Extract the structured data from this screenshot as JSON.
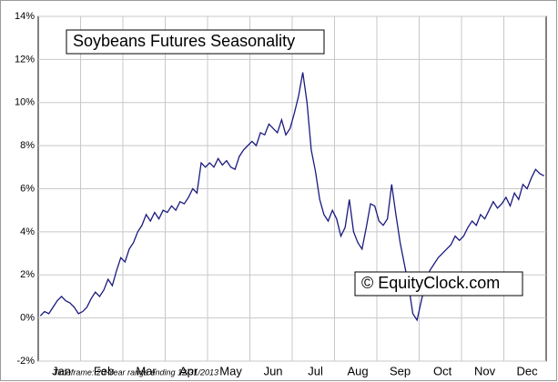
{
  "chart_data": {
    "type": "line",
    "title": "Soybeans Futures Seasonality",
    "watermark": "© EquityClock.com",
    "footnote": "Timeframe: 20-Year range ending 12/31/2013",
    "categories": [
      null,
      null,
      null,
      null,
      null,
      "Jan",
      null,
      null,
      null,
      null,
      null,
      null,
      null,
      null,
      null,
      "Feb",
      null,
      null,
      null,
      null,
      null,
      null,
      null,
      null,
      null,
      "Mar",
      null,
      null,
      null,
      null,
      null,
      null,
      null,
      null,
      null,
      "Apr",
      null,
      null,
      null,
      null,
      null,
      null,
      null,
      null,
      null,
      "May",
      null,
      null,
      null,
      null,
      null,
      null,
      null,
      null,
      null,
      "Jun",
      null,
      null,
      null,
      null,
      null,
      null,
      null,
      null,
      null,
      "Jul",
      null,
      null,
      null,
      null,
      null,
      null,
      null,
      null,
      null,
      "Aug",
      null,
      null,
      null,
      null,
      null,
      null,
      null,
      null,
      null,
      "Sep",
      null,
      null,
      null,
      null,
      null,
      null,
      null,
      null,
      null,
      "Oct",
      null,
      null,
      null,
      null,
      null,
      null,
      null,
      null,
      null,
      "Nov",
      null,
      null,
      null,
      null,
      null,
      null,
      null,
      null,
      null,
      "Dec",
      null,
      null,
      null,
      null
    ],
    "series": [
      {
        "color": "#1a1a80",
        "values": [
          0.1,
          0.3,
          0.2,
          0.5,
          0.8,
          1.0,
          0.8,
          0.7,
          0.5,
          0.2,
          0.3,
          0.5,
          0.9,
          1.2,
          1.0,
          1.3,
          1.8,
          1.5,
          2.2,
          2.8,
          2.6,
          3.2,
          3.5,
          4.0,
          4.3,
          4.8,
          4.5,
          4.9,
          4.6,
          5.0,
          4.9,
          5.2,
          5.0,
          5.4,
          5.3,
          5.6,
          6.0,
          5.8,
          7.2,
          7.0,
          7.2,
          7.0,
          7.4,
          7.1,
          7.3,
          7.0,
          6.9,
          7.5,
          7.8,
          8.0,
          8.2,
          8.0,
          8.6,
          8.5,
          9.0,
          8.8,
          8.6,
          9.2,
          8.5,
          8.8,
          9.5,
          10.3,
          11.4,
          10.0,
          7.8,
          6.8,
          5.5,
          4.8,
          4.5,
          5.0,
          4.6,
          3.8,
          4.2,
          5.5,
          4.0,
          3.5,
          3.2,
          4.2,
          5.3,
          5.2,
          4.5,
          4.3,
          4.6,
          6.2,
          4.8,
          3.5,
          2.5,
          1.5,
          0.2,
          -0.1,
          0.8,
          1.6,
          2.2,
          2.5,
          2.8,
          3.0,
          3.2,
          3.4,
          3.8,
          3.6,
          3.8,
          4.2,
          4.5,
          4.3,
          4.8,
          4.6,
          5.0,
          5.4,
          5.1,
          5.3,
          5.6,
          5.2,
          5.8,
          5.5,
          6.2,
          6.0,
          6.5,
          6.9,
          6.7,
          6.6
        ]
      }
    ],
    "ylim": [
      -2,
      14
    ],
    "yticks": [
      {
        "value": -2,
        "label": "-2%"
      },
      {
        "value": 0,
        "label": "0%"
      },
      {
        "value": 2,
        "label": "2%"
      },
      {
        "value": 4,
        "label": "4%"
      },
      {
        "value": 6,
        "label": "6%"
      },
      {
        "value": 8,
        "label": "8%"
      },
      {
        "value": 10,
        "label": "10%"
      },
      {
        "value": 12,
        "label": "12%"
      },
      {
        "value": 14,
        "label": "14%"
      }
    ],
    "grid": true
  }
}
